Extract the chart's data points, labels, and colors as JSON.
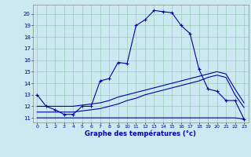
{
  "xlabel": "Graphe des températures (°c)",
  "bg_color": "#cce8f0",
  "line_color": "#0000aa",
  "grid_color": "#99ccbb",
  "xlim_min": -0.5,
  "xlim_max": 23.5,
  "ylim_min": 10.6,
  "ylim_max": 20.8,
  "xticks": [
    0,
    1,
    2,
    3,
    4,
    5,
    6,
    7,
    8,
    9,
    10,
    11,
    12,
    13,
    14,
    15,
    16,
    17,
    18,
    19,
    20,
    21,
    22,
    23
  ],
  "yticks": [
    11,
    12,
    13,
    14,
    15,
    16,
    17,
    18,
    19,
    20
  ],
  "curve1_x": [
    0,
    1,
    2,
    3,
    4,
    5,
    6,
    7,
    8,
    9,
    10,
    11,
    12,
    13,
    14,
    15,
    16,
    17,
    18,
    19,
    20,
    21,
    22,
    23
  ],
  "curve1_y": [
    13.0,
    12.0,
    11.7,
    11.3,
    11.3,
    12.0,
    12.0,
    14.2,
    14.4,
    15.8,
    15.7,
    19.0,
    19.5,
    20.3,
    20.2,
    20.1,
    19.0,
    18.3,
    15.2,
    13.5,
    13.3,
    12.5,
    12.5,
    10.9
  ],
  "curve2_x": [
    0,
    1,
    2,
    3,
    4,
    5,
    6,
    7,
    8,
    9,
    10,
    11,
    12,
    13,
    14,
    15,
    16,
    17,
    18,
    19,
    20,
    21,
    22,
    23
  ],
  "curve2_y": [
    11.0,
    11.0,
    11.0,
    11.0,
    11.0,
    11.0,
    11.0,
    11.0,
    11.0,
    11.0,
    11.0,
    11.0,
    11.0,
    11.0,
    11.0,
    11.0,
    11.0,
    11.0,
    11.0,
    11.0,
    11.0,
    11.0,
    11.0,
    10.9
  ],
  "curve3_x": [
    0,
    1,
    2,
    3,
    4,
    5,
    6,
    7,
    8,
    9,
    10,
    11,
    12,
    13,
    14,
    15,
    16,
    17,
    18,
    19,
    20,
    21,
    22,
    23
  ],
  "curve3_y": [
    11.5,
    11.5,
    11.5,
    11.5,
    11.5,
    11.6,
    11.7,
    11.8,
    12.0,
    12.2,
    12.5,
    12.7,
    13.0,
    13.2,
    13.4,
    13.6,
    13.8,
    14.0,
    14.2,
    14.5,
    14.7,
    14.5,
    13.0,
    11.9
  ],
  "curve4_x": [
    0,
    1,
    2,
    3,
    4,
    5,
    6,
    7,
    8,
    9,
    10,
    11,
    12,
    13,
    14,
    15,
    16,
    17,
    18,
    19,
    20,
    21,
    22,
    23
  ],
  "curve4_y": [
    12.0,
    12.0,
    12.0,
    12.0,
    12.0,
    12.1,
    12.2,
    12.3,
    12.5,
    12.8,
    13.0,
    13.2,
    13.4,
    13.6,
    13.8,
    14.0,
    14.2,
    14.4,
    14.6,
    14.8,
    15.0,
    14.8,
    13.5,
    12.3
  ]
}
